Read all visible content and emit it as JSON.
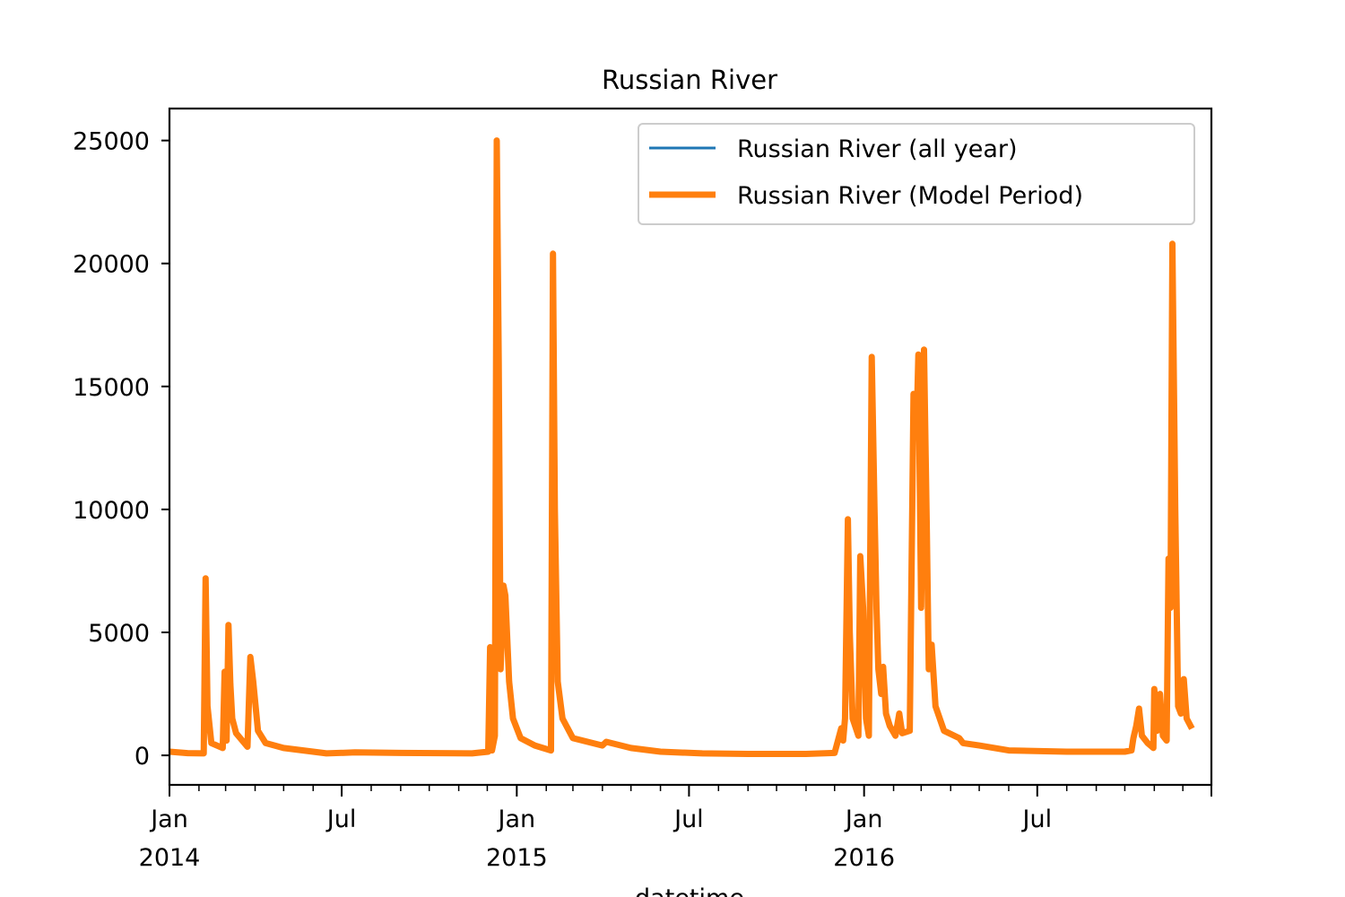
{
  "chart_data": {
    "type": "line",
    "title": "Russian River",
    "xlabel": "datetime",
    "ylabel": "",
    "xlim": [
      "2014-01-01",
      "2016-12-31"
    ],
    "ylim": [
      -1200,
      26300
    ],
    "y_ticks": [
      0,
      5000,
      10000,
      15000,
      20000,
      25000
    ],
    "y_tick_labels": [
      "0",
      "5000",
      "10000",
      "15000",
      "20000",
      "25000"
    ],
    "x_ticks": [
      {
        "date": "2014-01-01",
        "label": "Jan",
        "sublabel": "2014"
      },
      {
        "date": "2014-07-01",
        "label": "Jul",
        "sublabel": ""
      },
      {
        "date": "2015-01-01",
        "label": "Jan",
        "sublabel": "2015"
      },
      {
        "date": "2015-07-01",
        "label": "Jul",
        "sublabel": ""
      },
      {
        "date": "2016-01-01",
        "label": "Jan",
        "sublabel": "2016"
      },
      {
        "date": "2016-07-01",
        "label": "Jul",
        "sublabel": ""
      }
    ],
    "grid": false,
    "legend_position": "upper-right",
    "series": [
      {
        "name": "Russian River (all year)",
        "color": "#1f77b4",
        "points": [
          [
            "2014-01-01",
            150
          ],
          [
            "2014-01-20",
            90
          ],
          [
            "2014-02-06",
            80
          ],
          [
            "2014-02-08",
            7200
          ],
          [
            "2014-02-10",
            2000
          ],
          [
            "2014-02-14",
            500
          ],
          [
            "2014-02-26",
            300
          ],
          [
            "2014-02-28",
            3400
          ],
          [
            "2014-03-02",
            600
          ],
          [
            "2014-03-04",
            5300
          ],
          [
            "2014-03-06",
            2900
          ],
          [
            "2014-03-08",
            1500
          ],
          [
            "2014-03-12",
            900
          ],
          [
            "2014-03-24",
            350
          ],
          [
            "2014-03-27",
            4000
          ],
          [
            "2014-03-30",
            3000
          ],
          [
            "2014-04-04",
            1000
          ],
          [
            "2014-04-12",
            500
          ],
          [
            "2014-05-01",
            300
          ],
          [
            "2014-06-01",
            150
          ],
          [
            "2014-06-15",
            80
          ],
          [
            "2014-07-15",
            120
          ],
          [
            "2014-09-01",
            100
          ],
          [
            "2014-11-15",
            80
          ],
          [
            "2014-12-02",
            150
          ],
          [
            "2014-12-04",
            4400
          ],
          [
            "2014-12-06",
            200
          ],
          [
            "2014-12-09",
            800
          ],
          [
            "2014-12-11",
            25000
          ],
          [
            "2014-12-13",
            16000
          ],
          [
            "2014-12-15",
            3500
          ],
          [
            "2014-12-18",
            6900
          ],
          [
            "2014-12-20",
            6500
          ],
          [
            "2014-12-24",
            3000
          ],
          [
            "2014-12-28",
            1500
          ],
          [
            "2015-01-05",
            700
          ],
          [
            "2015-01-20",
            400
          ],
          [
            "2015-02-06",
            200
          ],
          [
            "2015-02-08",
            20400
          ],
          [
            "2015-02-10",
            10000
          ],
          [
            "2015-02-13",
            3000
          ],
          [
            "2015-02-18",
            1500
          ],
          [
            "2015-03-01",
            700
          ],
          [
            "2015-04-01",
            400
          ],
          [
            "2015-04-05",
            550
          ],
          [
            "2015-05-01",
            300
          ],
          [
            "2015-06-01",
            150
          ],
          [
            "2015-07-15",
            80
          ],
          [
            "2015-09-01",
            60
          ],
          [
            "2015-11-01",
            60
          ],
          [
            "2015-12-01",
            100
          ],
          [
            "2015-12-08",
            1100
          ],
          [
            "2015-12-10",
            600
          ],
          [
            "2015-12-12",
            1500
          ],
          [
            "2015-12-15",
            9600
          ],
          [
            "2015-12-17",
            5000
          ],
          [
            "2015-12-20",
            1500
          ],
          [
            "2015-12-26",
            800
          ],
          [
            "2015-12-28",
            8100
          ],
          [
            "2015-12-31",
            6000
          ],
          [
            "2016-01-03",
            1500
          ],
          [
            "2016-01-06",
            800
          ],
          [
            "2016-01-09",
            16200
          ],
          [
            "2016-01-12",
            10000
          ],
          [
            "2016-01-14",
            6000
          ],
          [
            "2016-01-16",
            3500
          ],
          [
            "2016-01-19",
            2500
          ],
          [
            "2016-01-21",
            3600
          ],
          [
            "2016-01-24",
            1700
          ],
          [
            "2016-01-28",
            1200
          ],
          [
            "2016-02-03",
            800
          ],
          [
            "2016-02-07",
            1700
          ],
          [
            "2016-02-10",
            900
          ],
          [
            "2016-02-18",
            1000
          ],
          [
            "2016-02-22",
            14700
          ],
          [
            "2016-02-25",
            13000
          ],
          [
            "2016-02-27",
            16300
          ],
          [
            "2016-03-01",
            6000
          ],
          [
            "2016-03-04",
            16500
          ],
          [
            "2016-03-07",
            9000
          ],
          [
            "2016-03-09",
            3500
          ],
          [
            "2016-03-12",
            4500
          ],
          [
            "2016-03-16",
            2000
          ],
          [
            "2016-03-25",
            1000
          ],
          [
            "2016-04-10",
            700
          ],
          [
            "2016-04-14",
            500
          ],
          [
            "2016-05-01",
            400
          ],
          [
            "2016-06-01",
            200
          ],
          [
            "2016-08-01",
            150
          ],
          [
            "2016-10-01",
            150
          ],
          [
            "2016-10-08",
            200
          ],
          [
            "2016-10-10",
            700
          ],
          [
            "2016-10-13",
            1200
          ],
          [
            "2016-10-16",
            1900
          ],
          [
            "2016-10-19",
            800
          ],
          [
            "2016-10-25",
            500
          ],
          [
            "2016-10-31",
            300
          ],
          [
            "2016-11-01",
            2700
          ],
          [
            "2016-11-04",
            1000
          ],
          [
            "2016-11-07",
            2500
          ],
          [
            "2016-11-10",
            800
          ],
          [
            "2016-11-14",
            600
          ],
          [
            "2016-11-16",
            8000
          ],
          [
            "2016-11-18",
            6000
          ],
          [
            "2016-11-20",
            20800
          ],
          [
            "2016-11-23",
            10000
          ],
          [
            "2016-11-26",
            2000
          ],
          [
            "2016-11-29",
            1700
          ],
          [
            "2016-12-02",
            3100
          ],
          [
            "2016-12-05",
            1500
          ],
          [
            "2016-12-09",
            1200
          ]
        ]
      },
      {
        "name": "Russian River (Model Period)",
        "color": "#ff7f0e",
        "points": [
          [
            "2014-01-01",
            150
          ],
          [
            "2014-01-20",
            90
          ],
          [
            "2014-02-06",
            80
          ],
          [
            "2014-02-08",
            7200
          ],
          [
            "2014-02-10",
            2000
          ],
          [
            "2014-02-14",
            500
          ],
          [
            "2014-02-26",
            300
          ],
          [
            "2014-02-28",
            3400
          ],
          [
            "2014-03-02",
            600
          ],
          [
            "2014-03-04",
            5300
          ],
          [
            "2014-03-06",
            2900
          ],
          [
            "2014-03-08",
            1500
          ],
          [
            "2014-03-12",
            900
          ],
          [
            "2014-03-24",
            350
          ],
          [
            "2014-03-27",
            4000
          ],
          [
            "2014-03-30",
            3000
          ],
          [
            "2014-04-04",
            1000
          ],
          [
            "2014-04-12",
            500
          ],
          [
            "2014-05-01",
            300
          ],
          [
            "2014-06-01",
            150
          ],
          [
            "2014-06-15",
            80
          ],
          [
            "2014-07-15",
            120
          ],
          [
            "2014-09-01",
            100
          ],
          [
            "2014-11-15",
            80
          ],
          [
            "2014-12-02",
            150
          ],
          [
            "2014-12-04",
            4400
          ],
          [
            "2014-12-06",
            200
          ],
          [
            "2014-12-09",
            800
          ],
          [
            "2014-12-11",
            25000
          ],
          [
            "2014-12-13",
            16000
          ],
          [
            "2014-12-15",
            3500
          ],
          [
            "2014-12-18",
            6900
          ],
          [
            "2014-12-20",
            6500
          ],
          [
            "2014-12-24",
            3000
          ],
          [
            "2014-12-28",
            1500
          ],
          [
            "2015-01-05",
            700
          ],
          [
            "2015-01-20",
            400
          ],
          [
            "2015-02-06",
            200
          ],
          [
            "2015-02-08",
            20400
          ],
          [
            "2015-02-10",
            10000
          ],
          [
            "2015-02-13",
            3000
          ],
          [
            "2015-02-18",
            1500
          ],
          [
            "2015-03-01",
            700
          ],
          [
            "2015-04-01",
            400
          ],
          [
            "2015-04-05",
            550
          ],
          [
            "2015-05-01",
            300
          ],
          [
            "2015-06-01",
            150
          ],
          [
            "2015-07-15",
            80
          ],
          [
            "2015-09-01",
            60
          ],
          [
            "2015-11-01",
            60
          ],
          [
            "2015-12-01",
            100
          ],
          [
            "2015-12-08",
            1100
          ],
          [
            "2015-12-10",
            600
          ],
          [
            "2015-12-12",
            1500
          ],
          [
            "2015-12-15",
            9600
          ],
          [
            "2015-12-17",
            5000
          ],
          [
            "2015-12-20",
            1500
          ],
          [
            "2015-12-26",
            800
          ],
          [
            "2015-12-28",
            8100
          ],
          [
            "2015-12-31",
            6000
          ],
          [
            "2016-01-03",
            1500
          ],
          [
            "2016-01-06",
            800
          ],
          [
            "2016-01-09",
            16200
          ],
          [
            "2016-01-12",
            10000
          ],
          [
            "2016-01-14",
            6000
          ],
          [
            "2016-01-16",
            3500
          ],
          [
            "2016-01-19",
            2500
          ],
          [
            "2016-01-21",
            3600
          ],
          [
            "2016-01-24",
            1700
          ],
          [
            "2016-01-28",
            1200
          ],
          [
            "2016-02-03",
            800
          ],
          [
            "2016-02-07",
            1700
          ],
          [
            "2016-02-10",
            900
          ],
          [
            "2016-02-18",
            1000
          ],
          [
            "2016-02-22",
            14700
          ],
          [
            "2016-02-25",
            13000
          ],
          [
            "2016-02-27",
            16300
          ],
          [
            "2016-03-01",
            6000
          ],
          [
            "2016-03-04",
            16500
          ],
          [
            "2016-03-07",
            9000
          ],
          [
            "2016-03-09",
            3500
          ],
          [
            "2016-03-12",
            4500
          ],
          [
            "2016-03-16",
            2000
          ],
          [
            "2016-03-25",
            1000
          ],
          [
            "2016-04-10",
            700
          ],
          [
            "2016-04-14",
            500
          ],
          [
            "2016-05-01",
            400
          ],
          [
            "2016-06-01",
            200
          ],
          [
            "2016-08-01",
            150
          ],
          [
            "2016-10-01",
            150
          ],
          [
            "2016-10-08",
            200
          ],
          [
            "2016-10-10",
            700
          ],
          [
            "2016-10-13",
            1200
          ],
          [
            "2016-10-16",
            1900
          ],
          [
            "2016-10-19",
            800
          ],
          [
            "2016-10-25",
            500
          ],
          [
            "2016-10-31",
            300
          ],
          [
            "2016-11-01",
            2700
          ],
          [
            "2016-11-04",
            1000
          ],
          [
            "2016-11-07",
            2500
          ],
          [
            "2016-11-10",
            800
          ],
          [
            "2016-11-14",
            600
          ],
          [
            "2016-11-16",
            8000
          ],
          [
            "2016-11-18",
            6000
          ],
          [
            "2016-11-20",
            20800
          ],
          [
            "2016-11-23",
            10000
          ],
          [
            "2016-11-26",
            2000
          ],
          [
            "2016-11-29",
            1700
          ],
          [
            "2016-12-02",
            3100
          ],
          [
            "2016-12-05",
            1500
          ],
          [
            "2016-12-09",
            1200
          ]
        ]
      }
    ]
  }
}
